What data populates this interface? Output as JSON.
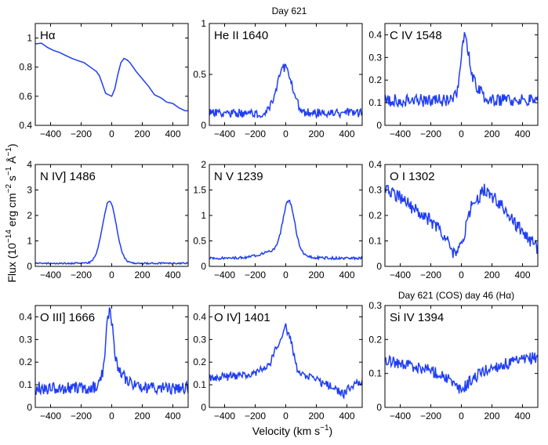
{
  "figure": {
    "top_title": "Day 621",
    "lower_right_note": "Day 621 (COS) day 46 (Hα)",
    "xlabel_text": "Velocity (km s",
    "xlabel_exp": "−1",
    "xlabel_close": ")",
    "ylabel_text": "Flux (10",
    "ylabel_exp1": "−14",
    "ylabel_mid1": " erg cm",
    "ylabel_exp2": "−2",
    "ylabel_mid2": " s",
    "ylabel_exp3": "−1",
    "ylabel_mid3": " Å",
    "ylabel_exp4": "−1",
    "ylabel_close": ")",
    "line_color": "#1f3df5"
  },
  "chart_data": [
    {
      "type": "line",
      "label": "Hα",
      "xlim": [
        -500,
        500
      ],
      "ylim": [
        0.4,
        1.1
      ],
      "xticks": [
        -400,
        -200,
        0,
        200,
        400
      ],
      "xtick_labels": [
        "−400",
        "−200",
        "0",
        "200",
        "400"
      ],
      "yticks": [
        0.4,
        0.6,
        0.8,
        1
      ],
      "ytick_labels": [
        "0.4",
        "0.6",
        "0.8",
        "1"
      ],
      "x": [
        -500,
        -460,
        -420,
        -380,
        -340,
        -300,
        -260,
        -220,
        -180,
        -140,
        -100,
        -80,
        -60,
        -40,
        -20,
        0,
        20,
        40,
        60,
        80,
        100,
        120,
        140,
        160,
        200,
        240,
        280,
        320,
        360,
        400,
        440,
        480,
        500
      ],
      "y": [
        0.96,
        0.965,
        0.935,
        0.915,
        0.9,
        0.88,
        0.86,
        0.845,
        0.83,
        0.8,
        0.77,
        0.74,
        0.68,
        0.62,
        0.61,
        0.6,
        0.65,
        0.75,
        0.83,
        0.86,
        0.85,
        0.83,
        0.8,
        0.77,
        0.72,
        0.67,
        0.61,
        0.59,
        0.56,
        0.55,
        0.52,
        0.5,
        0.5
      ]
    },
    {
      "type": "line",
      "label": "He II 1640",
      "xlim": [
        -500,
        500
      ],
      "ylim": [
        0,
        1
      ],
      "xticks": [
        -400,
        -200,
        0,
        200,
        400
      ],
      "xtick_labels": [
        "−400",
        "−200",
        "0",
        "200",
        "400"
      ],
      "yticks": [
        0,
        0.5,
        1
      ],
      "ytick_labels": [
        "0",
        "0.5",
        "1"
      ],
      "profile": {
        "base": 0.12,
        "noise": 0.045,
        "seed": 2,
        "peaks": [
          {
            "c": -10,
            "w": 50,
            "a": 0.44
          }
        ]
      }
    },
    {
      "type": "line",
      "label": "C IV 1548",
      "xlim": [
        -500,
        500
      ],
      "ylim": [
        0,
        0.45
      ],
      "xticks": [
        -400,
        -200,
        0,
        200,
        400
      ],
      "xtick_labels": [
        "−400",
        "−200",
        "0",
        "200",
        "400"
      ],
      "yticks": [
        0,
        0.1,
        0.2,
        0.3,
        0.4
      ],
      "ytick_labels": [
        "0",
        "0.1",
        "0.2",
        "0.3",
        "0.4"
      ],
      "profile": {
        "base": 0.11,
        "noise": 0.028,
        "seed": 3,
        "peaks": [
          {
            "c": 20,
            "w": 25,
            "a": 0.24
          },
          {
            "c": 70,
            "w": 45,
            "a": 0.08
          }
        ]
      }
    },
    {
      "type": "line",
      "label": "N IV] 1486",
      "xlim": [
        -500,
        500
      ],
      "ylim": [
        0,
        4
      ],
      "xticks": [
        -400,
        -200,
        0,
        200,
        400
      ],
      "xtick_labels": [
        "−400",
        "−200",
        "0",
        "200",
        "400"
      ],
      "yticks": [
        0,
        1,
        2,
        3,
        4
      ],
      "ytick_labels": [
        "0",
        "1",
        "2",
        "3",
        "4"
      ],
      "profile": {
        "base": 0.12,
        "noise": 0.03,
        "seed": 4,
        "peaks": [
          {
            "c": -15,
            "w": 45,
            "a": 2.45
          }
        ]
      }
    },
    {
      "type": "line",
      "label": "N V 1239",
      "xlim": [
        -500,
        500
      ],
      "ylim": [
        0,
        2
      ],
      "xticks": [
        -400,
        -200,
        0,
        200,
        400
      ],
      "xtick_labels": [
        "−400",
        "−200",
        "0",
        "200",
        "400"
      ],
      "yticks": [
        0,
        0.5,
        1,
        1.5,
        2
      ],
      "ytick_labels": [
        "0",
        "0.5",
        "1",
        "1.5",
        "2"
      ],
      "profile": {
        "base": 0.16,
        "noise": 0.025,
        "seed": 5,
        "peaks": [
          {
            "c": 20,
            "w": 38,
            "a": 1.0
          },
          {
            "c": -40,
            "w": 110,
            "a": 0.15
          }
        ]
      }
    },
    {
      "type": "line",
      "label": "O I 1302",
      "xlim": [
        -500,
        500
      ],
      "ylim": [
        0,
        0.4
      ],
      "xticks": [
        -400,
        -200,
        0,
        200,
        400
      ],
      "xtick_labels": [
        "−400",
        "−200",
        "0",
        "200",
        "400"
      ],
      "yticks": [
        0,
        0.1,
        0.2,
        0.3,
        0.4
      ],
      "ytick_labels": [
        "0",
        "0.1",
        "0.2",
        "0.3",
        "0.4"
      ],
      "profile": {
        "base": 0.0,
        "noise": 0.025,
        "seed": 6,
        "trend": [
          [
            -500,
            0.31
          ],
          [
            -400,
            0.27
          ],
          [
            -300,
            0.22
          ],
          [
            -200,
            0.18
          ],
          [
            -100,
            0.11
          ],
          [
            -40,
            0.04
          ],
          [
            0,
            0.08
          ],
          [
            60,
            0.23
          ],
          [
            150,
            0.3
          ],
          [
            250,
            0.25
          ],
          [
            350,
            0.17
          ],
          [
            450,
            0.1
          ],
          [
            500,
            0.07
          ]
        ]
      }
    },
    {
      "type": "line",
      "label": "O III] 1666",
      "xlim": [
        -500,
        500
      ],
      "ylim": [
        0,
        0.45
      ],
      "xticks": [
        -400,
        -200,
        0,
        200,
        400
      ],
      "xtick_labels": [
        "−400",
        "−200",
        "0",
        "200",
        "400"
      ],
      "yticks": [
        0,
        0.1,
        0.2,
        0.3,
        0.4
      ],
      "ytick_labels": [
        "0",
        "0.1",
        "0.2",
        "0.3",
        "0.4"
      ],
      "profile": {
        "base": 0.085,
        "noise": 0.028,
        "seed": 7,
        "peaks": [
          {
            "c": -15,
            "w": 25,
            "a": 0.3
          },
          {
            "c": 40,
            "w": 60,
            "a": 0.06
          }
        ]
      }
    },
    {
      "type": "line",
      "label": "O IV] 1401",
      "xlim": [
        -500,
        500
      ],
      "ylim": [
        0,
        0.45
      ],
      "xticks": [
        -400,
        -200,
        0,
        200,
        400
      ],
      "xtick_labels": [
        "−400",
        "−200",
        "0",
        "200",
        "400"
      ],
      "yticks": [
        0,
        0.1,
        0.2,
        0.3,
        0.4
      ],
      "ytick_labels": [
        "0",
        "0.1",
        "0.2",
        "0.3",
        "0.4"
      ],
      "profile": {
        "base": 0.0,
        "noise": 0.018,
        "seed": 8,
        "trend": [
          [
            -500,
            0.13
          ],
          [
            -300,
            0.14
          ],
          [
            -200,
            0.15
          ],
          [
            -100,
            0.2
          ],
          [
            -40,
            0.3
          ],
          [
            0,
            0.36
          ],
          [
            30,
            0.3
          ],
          [
            80,
            0.15
          ],
          [
            200,
            0.12
          ],
          [
            300,
            0.09
          ],
          [
            380,
            0.06
          ],
          [
            440,
            0.1
          ],
          [
            500,
            0.11
          ]
        ]
      }
    },
    {
      "type": "line",
      "label": "Si IV 1394",
      "xlim": [
        -500,
        500
      ],
      "ylim": [
        0,
        0.3
      ],
      "xticks": [
        -400,
        -200,
        0,
        200,
        400
      ],
      "xtick_labels": [
        "−400",
        "−200",
        "0",
        "200",
        "400"
      ],
      "yticks": [
        0,
        0.1,
        0.2,
        0.3
      ],
      "ytick_labels": [
        "0",
        "0.1",
        "0.2",
        "0.3"
      ],
      "profile": {
        "base": 0.0,
        "noise": 0.018,
        "seed": 9,
        "trend": [
          [
            -500,
            0.14
          ],
          [
            -400,
            0.13
          ],
          [
            -300,
            0.12
          ],
          [
            -200,
            0.11
          ],
          [
            -100,
            0.09
          ],
          [
            -40,
            0.06
          ],
          [
            0,
            0.05
          ],
          [
            40,
            0.07
          ],
          [
            120,
            0.1
          ],
          [
            220,
            0.12
          ],
          [
            320,
            0.13
          ],
          [
            420,
            0.14
          ],
          [
            500,
            0.15
          ]
        ]
      }
    }
  ]
}
